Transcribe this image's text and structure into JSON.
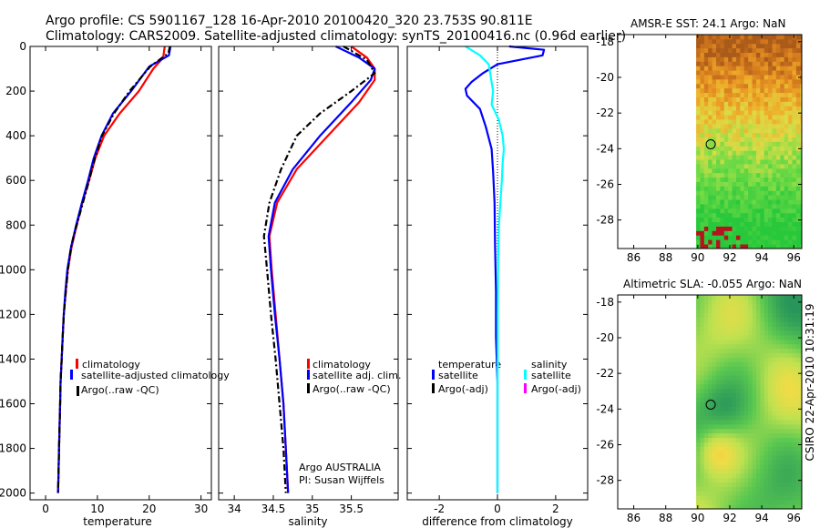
{
  "header": {
    "line1": "Argo profile: CS 5901167_128 16-Apr-2010 20100420_320 23.753S 90.811E",
    "line2": "Climatology: CARS2009. Satellite-adjusted climatology: synTS_20100416.nc (0.96d earlier)"
  },
  "side_text": "CSIRO 22-Apr-2010 10:31:19",
  "colors": {
    "red": "#ff0000",
    "blue": "#0000ff",
    "black": "#000000",
    "cyan": "#00ffff",
    "magenta": "#ff00ff"
  },
  "chart_data": [
    {
      "type": "line",
      "name": "temperature",
      "xlabel": "temperature",
      "xlim": [
        -3,
        32
      ],
      "ylim": [
        2030,
        0
      ],
      "xticks": [
        0,
        10,
        20,
        30
      ],
      "xtick_labels": [
        "0",
        "10",
        "20",
        "30"
      ],
      "yticks": [
        0,
        200,
        400,
        600,
        800,
        1000,
        1200,
        1400,
        1600,
        1800,
        2000
      ],
      "ytick_labels": [
        "0",
        "200",
        "400",
        "600",
        "800",
        "1000",
        "1200",
        "1400",
        "1600",
        "1800",
        "2000"
      ],
      "series": [
        {
          "name": "climatology",
          "color": "#ff0000",
          "style": "solid",
          "points": [
            [
              23.0,
              0
            ],
            [
              22.7,
              50
            ],
            [
              20.8,
              100
            ],
            [
              18.0,
              200
            ],
            [
              14.3,
              300
            ],
            [
              11.3,
              400
            ],
            [
              9.6,
              500
            ],
            [
              8.4,
              600
            ],
            [
              7.1,
              700
            ],
            [
              6.0,
              800
            ],
            [
              5.0,
              900
            ],
            [
              4.3,
              1000
            ],
            [
              3.9,
              1100
            ],
            [
              3.5,
              1200
            ],
            [
              3.3,
              1300
            ],
            [
              3.1,
              1400
            ],
            [
              2.9,
              1500
            ],
            [
              2.8,
              1600
            ],
            [
              2.7,
              1700
            ],
            [
              2.6,
              1800
            ],
            [
              2.5,
              1900
            ],
            [
              2.4,
              2000
            ]
          ]
        },
        {
          "name": "satellite-adjusted climatology",
          "color": "#0000ff",
          "style": "solid",
          "points": [
            [
              24.1,
              0
            ],
            [
              23.8,
              40
            ],
            [
              20.0,
              90
            ],
            [
              16.5,
              200
            ],
            [
              13.0,
              300
            ],
            [
              10.8,
              400
            ],
            [
              9.3,
              500
            ],
            [
              8.2,
              600
            ],
            [
              7.0,
              700
            ],
            [
              5.9,
              800
            ],
            [
              4.9,
              900
            ],
            [
              4.2,
              1000
            ],
            [
              3.8,
              1100
            ],
            [
              3.5,
              1200
            ],
            [
              3.3,
              1300
            ],
            [
              3.1,
              1400
            ],
            [
              2.9,
              1500
            ],
            [
              2.8,
              1600
            ],
            [
              2.7,
              1700
            ],
            [
              2.6,
              1800
            ],
            [
              2.5,
              1900
            ],
            [
              2.4,
              2000
            ]
          ]
        },
        {
          "name": "Argo(..raw -QC)",
          "color": "#000000",
          "style": "dashdot",
          "points": [
            [
              24.0,
              0
            ],
            [
              23.7,
              30
            ],
            [
              20.2,
              90
            ],
            [
              16.2,
              200
            ],
            [
              13.2,
              300
            ],
            [
              10.9,
              400
            ],
            [
              9.5,
              500
            ],
            [
              8.4,
              600
            ],
            [
              7.2,
              700
            ],
            [
              5.4,
              850
            ],
            [
              4.9,
              900
            ],
            [
              4.3,
              1000
            ],
            [
              3.9,
              1100
            ],
            [
              3.5,
              1200
            ],
            [
              3.3,
              1300
            ],
            [
              3.1,
              1400
            ],
            [
              2.9,
              1500
            ],
            [
              2.8,
              1600
            ],
            [
              2.7,
              1700
            ],
            [
              2.6,
              1800
            ],
            [
              2.5,
              1900
            ],
            [
              2.4,
              2000
            ]
          ]
        }
      ],
      "legend": [
        "climatology",
        "satellite-adjusted climatology",
        "Argo(..raw -QC)"
      ]
    },
    {
      "type": "line",
      "name": "salinity",
      "xlabel": "salinity",
      "xlim": [
        33.8,
        36.1
      ],
      "ylim": [
        2030,
        0
      ],
      "xticks": [
        34,
        34.5,
        35,
        35.5
      ],
      "xtick_labels": [
        "34",
        "34.5",
        "35",
        "35.5"
      ],
      "series": [
        {
          "name": "climatology",
          "color": "#ff0000",
          "style": "solid",
          "points": [
            [
              35.5,
              0
            ],
            [
              35.7,
              50
            ],
            [
              35.8,
              100
            ],
            [
              35.8,
              150
            ],
            [
              35.6,
              250
            ],
            [
              35.2,
              400
            ],
            [
              34.8,
              550
            ],
            [
              34.55,
              700
            ],
            [
              34.45,
              850
            ],
            [
              34.48,
              1000
            ],
            [
              34.53,
              1200
            ],
            [
              34.58,
              1400
            ],
            [
              34.63,
              1600
            ],
            [
              34.66,
              1800
            ],
            [
              34.69,
              2000
            ]
          ]
        },
        {
          "name": "satellite adj. clim.",
          "color": "#0000ff",
          "style": "solid",
          "points": [
            [
              35.3,
              0
            ],
            [
              35.6,
              50
            ],
            [
              35.8,
              100
            ],
            [
              35.75,
              150
            ],
            [
              35.5,
              250
            ],
            [
              35.1,
              400
            ],
            [
              34.75,
              550
            ],
            [
              34.52,
              700
            ],
            [
              34.44,
              850
            ],
            [
              34.47,
              1000
            ],
            [
              34.52,
              1200
            ],
            [
              34.58,
              1400
            ],
            [
              34.63,
              1600
            ],
            [
              34.66,
              1800
            ],
            [
              34.69,
              2000
            ]
          ]
        },
        {
          "name": "Argo(..raw -QC)",
          "color": "#000000",
          "style": "dashdot",
          "points": [
            [
              35.4,
              0
            ],
            [
              35.7,
              60
            ],
            [
              35.8,
              120
            ],
            [
              35.5,
              200
            ],
            [
              35.1,
              300
            ],
            [
              34.8,
              400
            ],
            [
              34.6,
              550
            ],
            [
              34.45,
              700
            ],
            [
              34.38,
              850
            ],
            [
              34.42,
              1000
            ],
            [
              34.47,
              1200
            ],
            [
              34.53,
              1400
            ],
            [
              34.58,
              1600
            ],
            [
              34.63,
              1800
            ],
            [
              34.66,
              2000
            ]
          ]
        }
      ],
      "legend": [
        "climatology",
        "satellite adj. clim.",
        "Argo(..raw -QC)"
      ],
      "annotation": [
        "Argo AUSTRALIA",
        "PI: Susan Wijffels"
      ]
    },
    {
      "type": "line",
      "name": "difference",
      "xlabel": "difference from climatology",
      "xlim": [
        -3.1,
        3.1
      ],
      "ylim": [
        2030,
        0
      ],
      "xticks": [
        -2,
        0,
        2
      ],
      "xtick_labels": [
        "-2",
        "0",
        "2"
      ],
      "series": [
        {
          "name": "temperature satellite",
          "color": "#0000ff",
          "style": "solid",
          "points": [
            [
              0.4,
              0
            ],
            [
              1.6,
              15
            ],
            [
              1.55,
              40
            ],
            [
              0.0,
              80
            ],
            [
              -0.5,
              120
            ],
            [
              -0.9,
              160
            ],
            [
              -1.1,
              190
            ],
            [
              -1.05,
              220
            ],
            [
              -0.6,
              280
            ],
            [
              -0.4,
              360
            ],
            [
              -0.2,
              460
            ],
            [
              -0.15,
              560
            ],
            [
              -0.1,
              700
            ],
            [
              -0.08,
              900
            ],
            [
              -0.05,
              1100
            ],
            [
              -0.05,
              1300
            ],
            [
              0.0,
              1500
            ],
            [
              0.0,
              1700
            ],
            [
              0.0,
              1900
            ],
            [
              0.0,
              2000
            ]
          ]
        },
        {
          "name": "salinity satellite",
          "color": "#00ffff",
          "style": "solid",
          "points": [
            [
              -1.1,
              0
            ],
            [
              -0.6,
              40
            ],
            [
              -0.3,
              80
            ],
            [
              -0.25,
              120
            ],
            [
              -0.15,
              200
            ],
            [
              -0.2,
              260
            ],
            [
              0.05,
              330
            ],
            [
              0.18,
              400
            ],
            [
              0.22,
              460
            ],
            [
              0.18,
              520
            ],
            [
              0.15,
              600
            ],
            [
              0.1,
              700
            ],
            [
              0.05,
              800
            ],
            [
              0.03,
              900
            ],
            [
              0.02,
              1000
            ],
            [
              0.01,
              1200
            ],
            [
              0.01,
              1400
            ],
            [
              0.0,
              1600
            ],
            [
              0.0,
              1800
            ],
            [
              0.0,
              2000
            ]
          ]
        }
      ],
      "legend_left_header": "temperature",
      "legend_right_header": "salinity",
      "legend_left": [
        "satellite",
        "Argo(-adj)"
      ],
      "legend_right": [
        "satellite",
        "Argo(-adj)"
      ]
    },
    {
      "type": "heatmap",
      "name": "sst_map",
      "title": "AMSR-E SST: 24.1 Argo: NaN",
      "xlim": [
        85,
        96.5
      ],
      "ylim": [
        -29.6,
        -17.6
      ],
      "xticks": [
        86,
        88,
        90,
        92,
        94,
        96
      ],
      "xtick_labels": [
        "86",
        "88",
        "90",
        "92",
        "94",
        "96"
      ],
      "yticks": [
        -18,
        -20,
        -22,
        -24,
        -26,
        -28
      ],
      "ytick_labels": [
        "-18",
        "-20",
        "-22",
        "-24",
        "-26",
        "-28"
      ],
      "data_xmin": 89.9,
      "argo_position": [
        90.811,
        -23.753
      ]
    },
    {
      "type": "heatmap",
      "name": "sla_map",
      "title": "Altimetric SLA: -0.055 Argo: NaN",
      "xlim": [
        85,
        96.5
      ],
      "ylim": [
        -29.6,
        -17.6
      ],
      "xticks": [
        86,
        88,
        90,
        92,
        94,
        96
      ],
      "xtick_labels": [
        "86",
        "88",
        "90",
        "92",
        "94",
        "96"
      ],
      "yticks": [
        -18,
        -20,
        -22,
        -24,
        -26,
        -28
      ],
      "ytick_labels": [
        "-18",
        "-20",
        "-22",
        "-24",
        "-26",
        "-28"
      ],
      "data_xmin": 89.9,
      "argo_position": [
        90.811,
        -23.753
      ]
    }
  ]
}
